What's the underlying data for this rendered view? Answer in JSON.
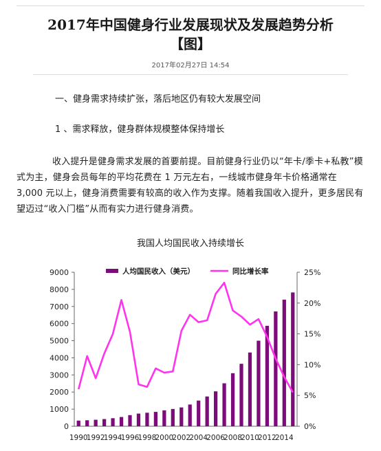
{
  "article": {
    "title_line1": "2017年中国健身行业发展现状及发展趋势分析",
    "title_line2": "【图】",
    "date": "2017年02月27日 14:54",
    "heading1": "一、健身需求持续扩张，落后地区仍有较大发展空间",
    "heading2": "1 、需求释放，健身群体规模整体保持增长",
    "paragraph": "收入提升是健身需求发展的首要前提。目前健身行业仍以“年卡/季卡+私教”模式为主，健身会员每年的平均花费在 1 万元左右，一线城市健身年卡价格通常在 3,000 元以上，健身消费需要有较高的收入作为支撑。随着我国收入提升，更多居民有望迈过“收入门槛”从而有实力进行健身消费。",
    "chart_title": "我国人均国民收入持续增长"
  },
  "chart_data": {
    "type": "bar",
    "x": [
      1990,
      1991,
      1992,
      1993,
      1994,
      1995,
      1996,
      1997,
      1998,
      1999,
      2000,
      2001,
      2002,
      2003,
      2004,
      2005,
      2006,
      2007,
      2008,
      2009,
      2010,
      2011,
      2012,
      2013,
      2014,
      2015
    ],
    "x_tick_labels": [
      "1990",
      "1992",
      "1994",
      "1996",
      "1998",
      "2000",
      "2002",
      "2004",
      "2006",
      "2008",
      "2010",
      "2012",
      "2014"
    ],
    "series": [
      {
        "name": "人均国民收入（美元）",
        "type": "bar",
        "axis": "left",
        "color": "#7b0c7a",
        "values": [
          330,
          350,
          380,
          420,
          470,
          540,
          650,
          740,
          790,
          840,
          930,
          1010,
          1100,
          1270,
          1500,
          1740,
          2040,
          2510,
          3100,
          3650,
          4310,
          5000,
          5870,
          6710,
          7400,
          7820
        ]
      },
      {
        "name": "同比增长率",
        "type": "line",
        "axis": "right",
        "color": "#ff33ee",
        "values": [
          0.06,
          0.114,
          0.078,
          0.118,
          0.15,
          0.205,
          0.153,
          0.068,
          0.064,
          0.094,
          0.087,
          0.089,
          0.155,
          0.181,
          0.169,
          0.172,
          0.215,
          0.233,
          0.188,
          0.178,
          0.165,
          0.174,
          0.145,
          0.11,
          0.08,
          0.055
        ]
      }
    ],
    "left_axis": {
      "ylim": [
        0,
        9000
      ],
      "ticks": [
        "0",
        "1000",
        "2000",
        "3000",
        "4000",
        "5000",
        "6000",
        "7000",
        "8000",
        "9000"
      ]
    },
    "right_axis": {
      "ylim": [
        0,
        0.25
      ],
      "ticks": [
        "0%",
        "5%",
        "10%",
        "15%",
        "20%",
        "25%"
      ]
    },
    "legend_placement": "top",
    "grid": false
  }
}
